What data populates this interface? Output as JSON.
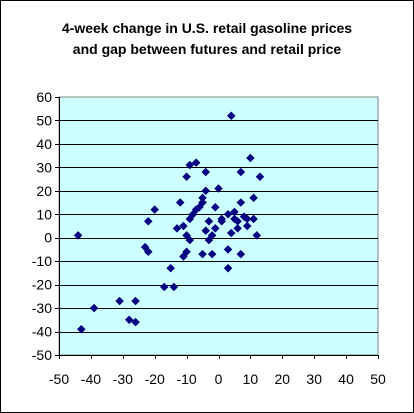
{
  "chart_data": {
    "type": "scatter",
    "title_lines": [
      "4-week change in U.S. retail gasoline prices",
      "and gap between futures and retail price"
    ],
    "xlabel": "",
    "ylabel": "",
    "xlim": [
      -50,
      50
    ],
    "ylim": [
      -50,
      60
    ],
    "x_ticks": [
      -50,
      -40,
      -30,
      -20,
      -10,
      0,
      10,
      20,
      30,
      40,
      50
    ],
    "y_ticks": [
      -50,
      -40,
      -30,
      -20,
      -10,
      0,
      10,
      20,
      30,
      40,
      50,
      60
    ],
    "grid": "horizontal",
    "legend": "none",
    "colors": {
      "plot_background": "#ccffff",
      "marker": "#000080",
      "gridline": "#000000"
    },
    "marker": "diamond",
    "series": [
      {
        "points": [
          [
            -44,
            1
          ],
          [
            -43,
            -39
          ],
          [
            -39,
            -30
          ],
          [
            -31,
            -27
          ],
          [
            -28,
            -35
          ],
          [
            -26,
            -36
          ],
          [
            -26,
            -27
          ],
          [
            -23,
            -4
          ],
          [
            -22,
            -6
          ],
          [
            -22,
            7
          ],
          [
            -20,
            12
          ],
          [
            -17,
            -21
          ],
          [
            -15,
            -13
          ],
          [
            -14,
            -21
          ],
          [
            -13,
            4
          ],
          [
            -12,
            15
          ],
          [
            -11,
            -8
          ],
          [
            -11,
            5
          ],
          [
            -10,
            -6
          ],
          [
            -10,
            26
          ],
          [
            -10,
            1
          ],
          [
            -9,
            31
          ],
          [
            -9,
            8
          ],
          [
            -9,
            -1
          ],
          [
            -8,
            10
          ],
          [
            -7,
            32
          ],
          [
            -7,
            12
          ],
          [
            -6,
            13
          ],
          [
            -5,
            -7
          ],
          [
            -5,
            17
          ],
          [
            -5,
            15
          ],
          [
            -4,
            20
          ],
          [
            -4,
            28
          ],
          [
            -4,
            3
          ],
          [
            -3,
            -1
          ],
          [
            -3,
            7
          ],
          [
            -2,
            1
          ],
          [
            -2,
            -7
          ],
          [
            -1,
            4
          ],
          [
            -1,
            13
          ],
          [
            0,
            21
          ],
          [
            1,
            8
          ],
          [
            1,
            7
          ],
          [
            3,
            -5
          ],
          [
            3,
            10
          ],
          [
            4,
            52
          ],
          [
            4,
            2
          ],
          [
            5,
            8
          ],
          [
            5,
            11
          ],
          [
            6,
            7
          ],
          [
            6,
            4
          ],
          [
            7,
            28
          ],
          [
            7,
            15
          ],
          [
            7,
            -7
          ],
          [
            8,
            9
          ],
          [
            9,
            5
          ],
          [
            9,
            8
          ],
          [
            10,
            34
          ],
          [
            11,
            8
          ],
          [
            11,
            17
          ],
          [
            12,
            1
          ],
          [
            13,
            26
          ],
          [
            3,
            -13
          ]
        ]
      }
    ]
  }
}
